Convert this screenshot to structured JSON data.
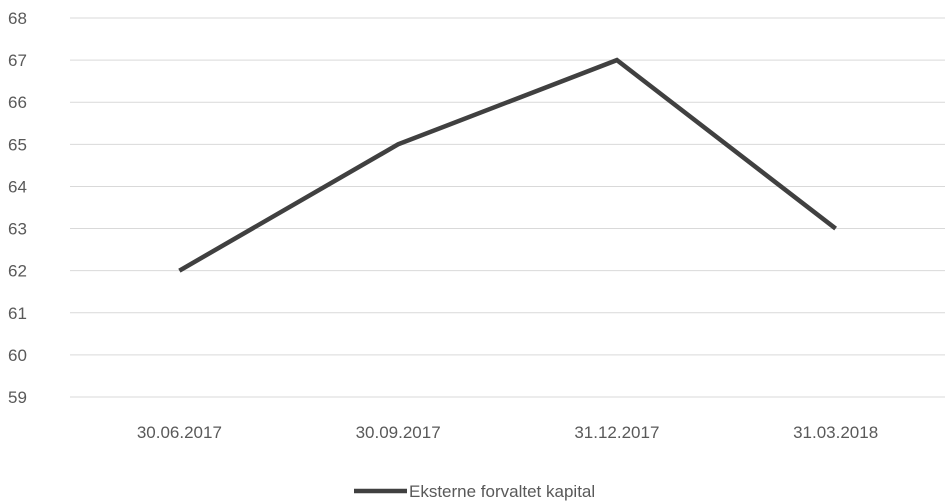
{
  "chart_data": {
    "type": "line",
    "title": "",
    "xlabel": "",
    "ylabel": "",
    "categories": [
      "30.06.2017",
      "30.09.2017",
      "31.12.2017",
      "31.03.2018"
    ],
    "series": [
      {
        "name": "Eksterne forvaltet kapital",
        "values": [
          62,
          65,
          67,
          63
        ],
        "color": "#404040"
      }
    ],
    "ylim": [
      59,
      68
    ],
    "yticks": [
      "59",
      "60",
      "61",
      "62",
      "63",
      "64",
      "65",
      "66",
      "67",
      "68"
    ],
    "grid": true,
    "gridline_color": "#d9d9d9",
    "legend_position": "bottom"
  }
}
